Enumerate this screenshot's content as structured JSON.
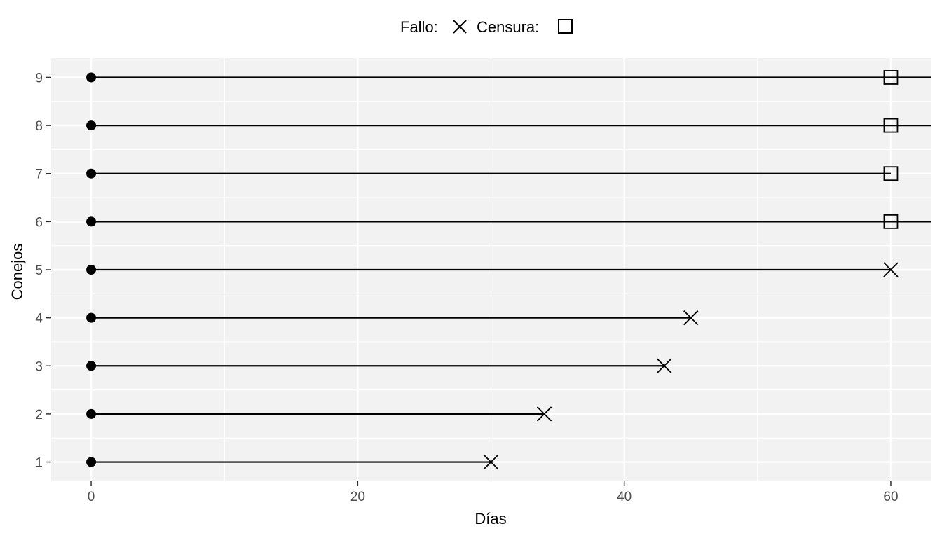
{
  "chart_data": {
    "type": "line",
    "subtype": "survival-lollipop",
    "legend": {
      "position": "top",
      "items": [
        {
          "label": "Fallo:",
          "marker": "x-cross-icon"
        },
        {
          "label": "Censura:",
          "marker": "open-square-icon"
        }
      ]
    },
    "xlabel": "Días",
    "ylabel": "Conejos",
    "xlim": [
      -3,
      63
    ],
    "ylim": [
      0.6,
      9.4
    ],
    "x_ticks": [
      0,
      20,
      40,
      60
    ],
    "y_ticks": [
      1,
      2,
      3,
      4,
      5,
      6,
      7,
      8,
      9
    ],
    "grid": true,
    "panel_background": "#f2f2f2",
    "grid_color": "#ffffff",
    "line_color": "#000000",
    "subjects": [
      {
        "id": 1,
        "start": 0,
        "end": 30,
        "event": "fallo",
        "line_end": 30
      },
      {
        "id": 2,
        "start": 0,
        "end": 34,
        "event": "fallo",
        "line_end": 34
      },
      {
        "id": 3,
        "start": 0,
        "end": 43,
        "event": "fallo",
        "line_end": 43
      },
      {
        "id": 4,
        "start": 0,
        "end": 45,
        "event": "fallo",
        "line_end": 45
      },
      {
        "id": 5,
        "start": 0,
        "end": 60,
        "event": "fallo",
        "line_end": 60
      },
      {
        "id": 6,
        "start": 0,
        "end": 60,
        "event": "censura",
        "line_end": 63
      },
      {
        "id": 7,
        "start": 0,
        "end": 60,
        "event": "censura",
        "line_end": 60
      },
      {
        "id": 8,
        "start": 0,
        "end": 60,
        "event": "censura",
        "line_end": 63
      },
      {
        "id": 9,
        "start": 0,
        "end": 60,
        "event": "censura",
        "line_end": 63
      }
    ]
  }
}
